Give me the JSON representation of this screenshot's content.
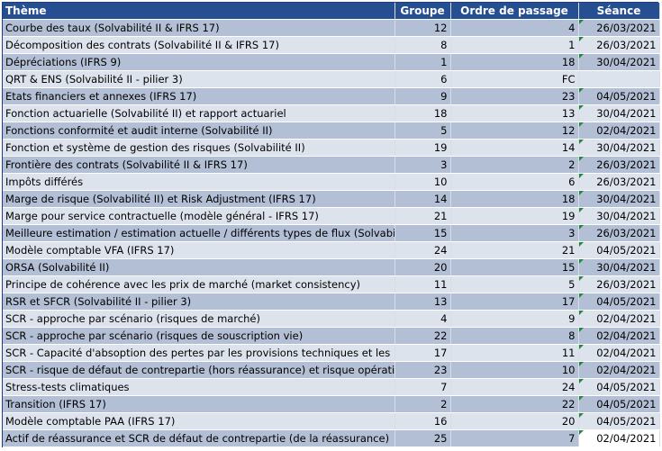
{
  "headers": {
    "theme": "Thème",
    "groupe": "Groupe",
    "ordre": "Ordre de passage",
    "seance": "Séance"
  },
  "rows": [
    {
      "theme": "Courbe des taux (Solvabilité II & IFRS 17)",
      "groupe": "12",
      "ordre": "4",
      "seance": "26/03/2021"
    },
    {
      "theme": "Décomposition des contrats (Solvabilité II & IFRS 17)",
      "groupe": "8",
      "ordre": "1",
      "seance": "26/03/2021"
    },
    {
      "theme": "Dépréciations (IFRS 9)",
      "groupe": "1",
      "ordre": "18",
      "seance": "30/04/2021"
    },
    {
      "theme": "QRT & ENS (Solvabilité II - pilier 3)",
      "groupe": "6",
      "ordre": "FC",
      "seance": ""
    },
    {
      "theme": "Etats financiers et annexes (IFRS 17)",
      "groupe": "9",
      "ordre": "23",
      "seance": "04/05/2021"
    },
    {
      "theme": "Fonction actuarielle (Solvabilité II) et rapport actuariel",
      "groupe": "18",
      "ordre": "13",
      "seance": "30/04/2021"
    },
    {
      "theme": "Fonctions conformité et audit interne (Solvabilité II)",
      "groupe": "5",
      "ordre": "12",
      "seance": "02/04/2021"
    },
    {
      "theme": "Fonction et système de gestion des risques (Solvabilité II)",
      "groupe": "19",
      "ordre": "14",
      "seance": "30/04/2021"
    },
    {
      "theme": "Frontière des contrats (Solvabilité II & IFRS 17)",
      "groupe": "3",
      "ordre": "2",
      "seance": "26/03/2021"
    },
    {
      "theme": "Impôts différés",
      "groupe": "10",
      "ordre": "6",
      "seance": "26/03/2021"
    },
    {
      "theme": "Marge de risque (Solvabilité II) et Risk Adjustment (IFRS 17)",
      "groupe": "14",
      "ordre": "18",
      "seance": "30/04/2021"
    },
    {
      "theme": "Marge pour service contractuelle (modèle général - IFRS 17)",
      "groupe": "21",
      "ordre": "19",
      "seance": "30/04/2021"
    },
    {
      "theme": "Meilleure estimation / estimation actuelle / différents types de flux (Solvabilité",
      "groupe": "15",
      "ordre": "3",
      "seance": "26/03/2021"
    },
    {
      "theme": "Modèle comptable VFA (IFRS 17)",
      "groupe": "24",
      "ordre": "21",
      "seance": "04/05/2021"
    },
    {
      "theme": "ORSA (Solvabilité II)",
      "groupe": "20",
      "ordre": "15",
      "seance": "30/04/2021"
    },
    {
      "theme": "Principe de cohérence avec les prix de marché (market consistency)",
      "groupe": "11",
      "ordre": "5",
      "seance": "26/03/2021"
    },
    {
      "theme": "RSR et SFCR (Solvabilité II - pilier 3)",
      "groupe": "13",
      "ordre": "17",
      "seance": "04/05/2021"
    },
    {
      "theme": "SCR - approche par scénario (risques de marché)",
      "groupe": "4",
      "ordre": "9",
      "seance": "02/04/2021"
    },
    {
      "theme": "SCR - approche par scénario (risques de souscription vie)",
      "groupe": "22",
      "ordre": "8",
      "seance": "02/04/2021"
    },
    {
      "theme": "SCR - Capacité d'absoption des pertes par les provisions techniques et les ID",
      "groupe": "17",
      "ordre": "11",
      "seance": "02/04/2021"
    },
    {
      "theme": "SCR - risque de défaut de contrepartie (hors réassurance) et risque opérationne",
      "groupe": "23",
      "ordre": "10",
      "seance": "02/04/2021"
    },
    {
      "theme": "Stress-tests climatiques",
      "groupe": "7",
      "ordre": "24",
      "seance": "04/05/2021"
    },
    {
      "theme": "Transition (IFRS 17)",
      "groupe": "2",
      "ordre": "22",
      "seance": "04/05/2021"
    },
    {
      "theme": "Modèle comptable PAA (IFRS 17)",
      "groupe": "16",
      "ordre": "20",
      "seance": "04/05/2021"
    },
    {
      "theme": "Actif de réassurance et SCR de défaut de contrepartie (de la réassurance)",
      "groupe": "25",
      "ordre": "7",
      "seance": "02/04/2021"
    }
  ],
  "colors": {
    "header_bg": "#254f91",
    "row_dark": "#b3bfd4",
    "row_light": "#dde3ec",
    "marker": "#1f8a3a"
  }
}
